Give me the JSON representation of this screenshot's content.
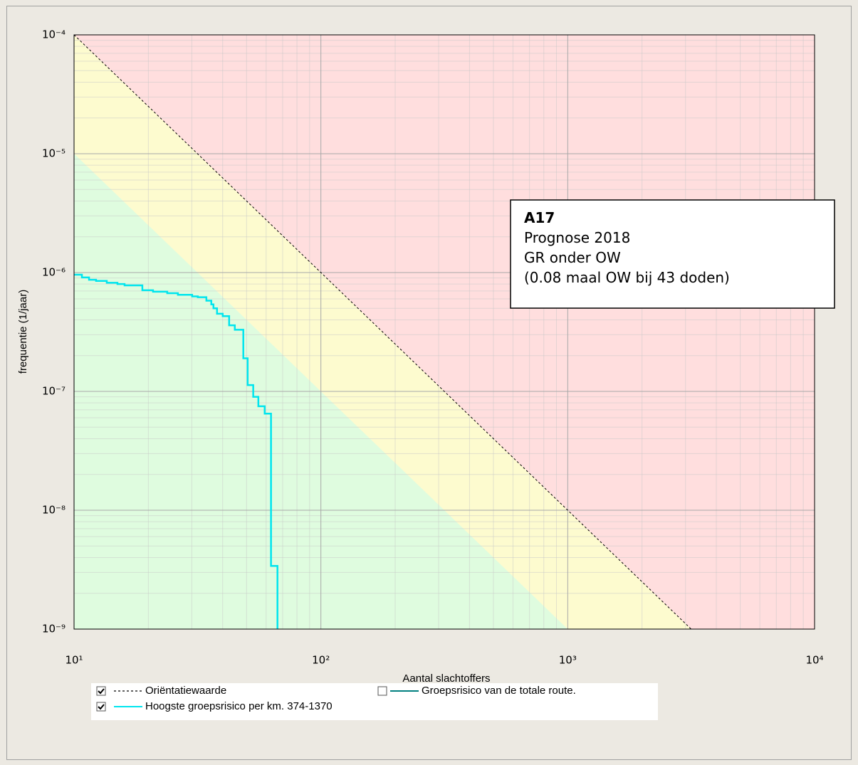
{
  "chart_data": {
    "type": "line",
    "x_label": "Aantal slachtoffers",
    "y_label": "frequentie (1/jaar)",
    "log_x": true,
    "log_y": true,
    "grid": true,
    "xlim": [
      10,
      10000
    ],
    "ylim": [
      1e-09,
      0.0001
    ],
    "xticks": [
      {
        "value": 10,
        "label": "10¹"
      },
      {
        "value": 100,
        "label": "10²"
      },
      {
        "value": 1000,
        "label": "10³"
      },
      {
        "value": 10000,
        "label": "10⁴"
      }
    ],
    "yticks": [
      {
        "value": 1e-09,
        "label": "10⁻⁹"
      },
      {
        "value": 1e-08,
        "label": "10⁻⁸"
      },
      {
        "value": 1e-07,
        "label": "10⁻⁷"
      },
      {
        "value": 1e-06,
        "label": "10⁻⁶"
      },
      {
        "value": 1e-05,
        "label": "10⁻⁵"
      },
      {
        "value": 0.0001,
        "label": "10⁻⁴"
      }
    ],
    "background_color": "#ffdede",
    "zones": [
      {
        "color": "#fdfbcf",
        "x": [
          10,
          3162.28
        ],
        "values": [
          0.0001,
          1e-09
        ]
      },
      {
        "color": "#dffcdf",
        "x": [
          10,
          1000
        ],
        "values": [
          1e-05,
          1e-09
        ]
      }
    ],
    "series": [
      {
        "name": "Oriëntatiewaarde",
        "color": "#000000",
        "dashed": true,
        "visible": true,
        "x": [
          10,
          3162.28
        ],
        "values": [
          0.0001,
          1e-09
        ]
      },
      {
        "name": "Groepsrisico van de totale route.",
        "color": "#008080",
        "visible": false
      },
      {
        "name": "Hoogste groepsrisico per km. 374-1370",
        "color": "#00e5ee",
        "visible": true,
        "x": [
          10,
          10.76,
          10.76,
          11.5,
          11.5,
          12.28,
          12.28,
          13.57,
          13.57,
          14.99,
          14.99,
          16.02,
          16.02,
          18.91,
          18.91,
          20.89,
          20.89,
          23.85,
          23.85,
          26.35,
          26.35,
          30.09,
          30.09,
          31.72,
          31.72,
          34.36,
          34.36,
          35.98,
          35.98,
          36.71,
          36.71,
          37.95,
          37.95,
          40.02,
          40.02,
          42.49,
          42.49,
          44.8,
          44.8,
          48.5,
          48.5,
          50.5,
          50.5,
          53.2,
          53.2,
          55.8,
          55.8,
          59.2,
          59.2,
          62.8,
          62.8,
          66.7,
          66.7
        ],
        "values": [
          9.6e-07,
          9.6e-07,
          9.1e-07,
          9.1e-07,
          8.7e-07,
          8.7e-07,
          8.5e-07,
          8.5e-07,
          8.2e-07,
          8.2e-07,
          8e-07,
          8e-07,
          7.8e-07,
          7.8e-07,
          7.1e-07,
          7.1e-07,
          6.9e-07,
          6.9e-07,
          6.7e-07,
          6.7e-07,
          6.5e-07,
          6.5e-07,
          6.3e-07,
          6.3e-07,
          6.2e-07,
          6.2e-07,
          5.8e-07,
          5.8e-07,
          5.4e-07,
          5.4e-07,
          5e-07,
          5e-07,
          4.5e-07,
          4.5e-07,
          4.3e-07,
          4.3e-07,
          3.6e-07,
          3.6e-07,
          3.3e-07,
          3.3e-07,
          1.9e-07,
          1.9e-07,
          1.13e-07,
          1.13e-07,
          9e-08,
          9e-08,
          7.5e-08,
          7.5e-08,
          6.5e-08,
          6.5e-08,
          3.4e-09,
          3.4e-09,
          1e-09
        ]
      }
    ],
    "annotation": {
      "title": "A17",
      "lines": [
        "Prognose 2018",
        "GR onder OW",
        "(0.08 maal OW bij 43 doden)"
      ]
    }
  }
}
